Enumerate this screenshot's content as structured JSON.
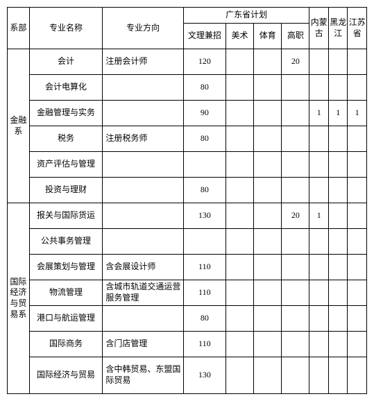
{
  "header": {
    "dept": "系部",
    "major": "专业名称",
    "direction": "专业方向",
    "gd_plan": "广东省计划",
    "gd_sub": [
      "文理兼招",
      "美术",
      "体育",
      "高职"
    ],
    "provinces": [
      "内蒙古",
      "黑龙江",
      "江苏省"
    ]
  },
  "depts": [
    {
      "name": "金融系",
      "rows": [
        {
          "major": "会计",
          "direction": "注册会计师",
          "gd": [
            "120",
            "",
            "",
            "20"
          ],
          "p": [
            "",
            "",
            ""
          ]
        },
        {
          "major": "会计电算化",
          "direction": "",
          "gd": [
            "80",
            "",
            "",
            ""
          ],
          "p": [
            "",
            "",
            ""
          ]
        },
        {
          "major": "金融管理与实务",
          "direction": "",
          "gd": [
            "90",
            "",
            "",
            ""
          ],
          "p": [
            "1",
            "1",
            "1"
          ]
        },
        {
          "major": "税务",
          "direction": "注册税务师",
          "gd": [
            "80",
            "",
            "",
            ""
          ],
          "p": [
            "",
            "",
            ""
          ]
        },
        {
          "major": "资产评估与管理",
          "direction": "",
          "gd": [
            "",
            "",
            "",
            ""
          ],
          "p": [
            "",
            "",
            ""
          ]
        },
        {
          "major": "投资与理财",
          "direction": "",
          "gd": [
            "80",
            "",
            "",
            ""
          ],
          "p": [
            "",
            "",
            ""
          ]
        }
      ]
    },
    {
      "name": "国际经济与贸易系",
      "rows": [
        {
          "major": "报关与国际货运",
          "direction": "",
          "gd": [
            "130",
            "",
            "",
            "20"
          ],
          "p": [
            "1",
            "",
            ""
          ]
        },
        {
          "major": "公共事务管理",
          "direction": "",
          "gd": [
            "",
            "",
            "",
            ""
          ],
          "p": [
            "",
            "",
            ""
          ]
        },
        {
          "major": "会展策划与管理",
          "direction": "含会展设计师",
          "gd": [
            "110",
            "",
            "",
            ""
          ],
          "p": [
            "",
            "",
            ""
          ]
        },
        {
          "major": "物流管理",
          "direction": "含城市轨道交通运营服务管理",
          "gd": [
            "110",
            "",
            "",
            ""
          ],
          "p": [
            "",
            "",
            ""
          ]
        },
        {
          "major": "港口与航运管理",
          "direction": "",
          "gd": [
            "80",
            "",
            "",
            ""
          ],
          "p": [
            "",
            "",
            ""
          ]
        },
        {
          "major": "国际商务",
          "direction": "含门店管理",
          "gd": [
            "110",
            "",
            "",
            ""
          ],
          "p": [
            "",
            "",
            ""
          ]
        },
        {
          "major": "国际经济与贸易",
          "direction": "含中韩贸易、东盟国际贸易",
          "gd": [
            "130",
            "",
            "",
            ""
          ],
          "p": [
            "",
            "",
            ""
          ],
          "tall": true
        }
      ]
    }
  ]
}
